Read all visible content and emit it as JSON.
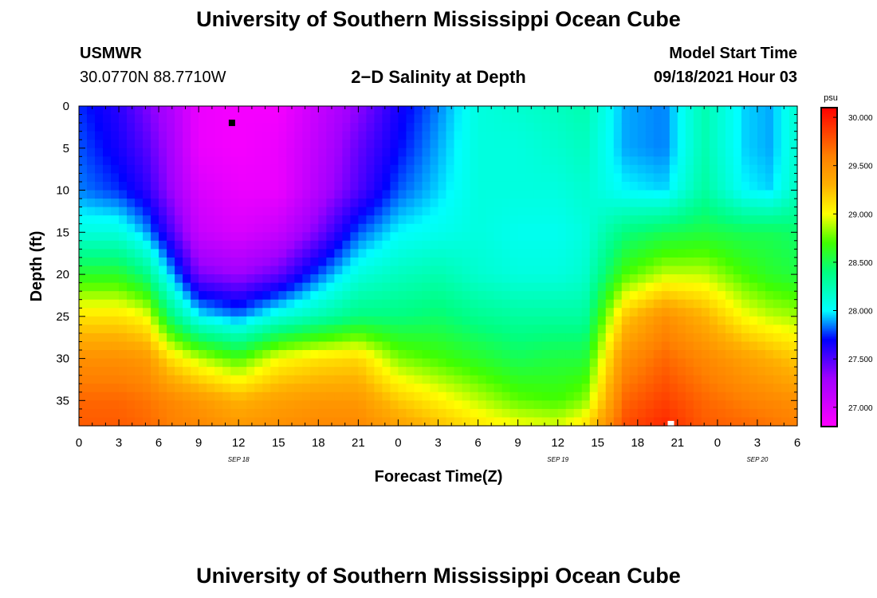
{
  "header": {
    "title": "University of Southern Mississippi Ocean Cube",
    "footer_title": "University of Southern Mississippi Ocean Cube",
    "station": "USMWR",
    "coords": "30.0770N  88.7710W",
    "plot_title": "2−D Salinity at Depth",
    "model_label": "Model Start Time",
    "model_time": "09/18/2021 Hour 03"
  },
  "chart_data": {
    "type": "heatmap",
    "title": "2−D Salinity at Depth",
    "xlabel": "Forecast Time(Z)",
    "ylabel": "Depth (ft)",
    "x_tick_labels": [
      "0",
      "3",
      "6",
      "9",
      "12",
      "15",
      "18",
      "21",
      "0",
      "3",
      "6",
      "9",
      "12",
      "15",
      "18",
      "21",
      "0",
      "3",
      "6"
    ],
    "date_labels": [
      {
        "text": "SEP 18",
        "hour_index": 12
      },
      {
        "text": "SEP 19",
        "hour_index": 36
      },
      {
        "text": "SEP 20",
        "hour_index": 51
      }
    ],
    "x_range_hours": [
      0,
      54
    ],
    "y_ticks": [
      0,
      5,
      10,
      15,
      20,
      25,
      30,
      35
    ],
    "y_range_ft": [
      0,
      38
    ],
    "y_inverted": true,
    "colorbar": {
      "unit": "psu",
      "ticks": [
        "30.000",
        "29.500",
        "29.000",
        "28.500",
        "28.000",
        "27.500",
        "27.000"
      ],
      "range": [
        26.8,
        30.1
      ],
      "stops": [
        {
          "v": 26.8,
          "color": "#ff00ff"
        },
        {
          "v": 27.3,
          "color": "#a000ff"
        },
        {
          "v": 27.7,
          "color": "#0000ff"
        },
        {
          "v": 28.0,
          "color": "#00ffff"
        },
        {
          "v": 28.4,
          "color": "#00ff80"
        },
        {
          "v": 28.7,
          "color": "#40ff00"
        },
        {
          "v": 29.0,
          "color": "#ffff00"
        },
        {
          "v": 29.3,
          "color": "#ffb000"
        },
        {
          "v": 29.6,
          "color": "#ff8000"
        },
        {
          "v": 30.1,
          "color": "#ff0000"
        }
      ]
    },
    "markers": [
      {
        "hour": 11.5,
        "depth_ft": 2,
        "color": "#000000"
      },
      {
        "hour": 44.5,
        "depth_ft": 37.8,
        "color": "#ffffff"
      }
    ],
    "field_profiles": {
      "note": "salinity (psu) by hour (key) at depths 0,5,10,15,20,25,30,35,38 ft",
      "depths_ft": [
        0,
        5,
        10,
        15,
        20,
        25,
        30,
        35,
        38
      ],
      "columns": [
        {
          "hour": 0,
          "values": [
            27.75,
            27.8,
            27.85,
            28.1,
            28.6,
            29.1,
            29.5,
            29.7,
            29.75
          ]
        },
        {
          "hour": 3,
          "values": [
            27.6,
            27.65,
            27.75,
            28.1,
            28.6,
            29.1,
            29.5,
            29.7,
            29.75
          ]
        },
        {
          "hour": 5,
          "values": [
            27.4,
            27.5,
            27.6,
            27.9,
            28.4,
            29.0,
            29.45,
            29.65,
            29.7
          ]
        },
        {
          "hour": 7,
          "values": [
            27.2,
            27.25,
            27.3,
            27.5,
            27.9,
            28.4,
            29.1,
            29.55,
            29.6
          ]
        },
        {
          "hour": 9,
          "values": [
            26.9,
            26.9,
            27.0,
            27.1,
            27.4,
            28.0,
            28.9,
            29.45,
            29.55
          ]
        },
        {
          "hour": 12,
          "values": [
            26.85,
            26.85,
            26.9,
            27.0,
            27.3,
            27.85,
            28.7,
            29.3,
            29.45
          ]
        },
        {
          "hour": 15,
          "values": [
            26.85,
            26.9,
            26.9,
            27.1,
            27.45,
            28.1,
            29.0,
            29.4,
            29.5
          ]
        },
        {
          "hour": 18,
          "values": [
            27.1,
            27.15,
            27.2,
            27.4,
            27.8,
            28.25,
            29.1,
            29.45,
            29.55
          ]
        },
        {
          "hour": 21,
          "values": [
            27.35,
            27.45,
            27.5,
            27.8,
            28.1,
            28.4,
            29.15,
            29.45,
            29.55
          ]
        },
        {
          "hour": 24,
          "values": [
            27.65,
            27.7,
            27.8,
            28.0,
            28.2,
            28.4,
            28.8,
            29.2,
            29.4
          ]
        },
        {
          "hour": 27,
          "values": [
            27.85,
            27.9,
            27.95,
            28.05,
            28.25,
            28.45,
            28.7,
            29.05,
            29.25
          ]
        },
        {
          "hour": 30,
          "values": [
            28.1,
            28.1,
            28.1,
            28.1,
            28.15,
            28.35,
            28.6,
            28.9,
            29.1
          ]
        },
        {
          "hour": 33,
          "values": [
            28.15,
            28.1,
            28.1,
            28.05,
            28.1,
            28.3,
            28.5,
            28.75,
            29.0
          ]
        },
        {
          "hour": 36,
          "values": [
            28.2,
            28.15,
            28.1,
            28.05,
            28.1,
            28.3,
            28.55,
            28.7,
            28.95
          ]
        },
        {
          "hour": 38,
          "values": [
            28.25,
            28.2,
            28.15,
            28.1,
            28.15,
            28.3,
            28.55,
            28.8,
            29.1
          ]
        },
        {
          "hour": 41,
          "values": [
            27.9,
            27.9,
            28.0,
            28.4,
            28.7,
            29.2,
            29.5,
            29.7,
            29.8
          ]
        },
        {
          "hour": 44,
          "values": [
            27.85,
            27.85,
            27.95,
            28.5,
            28.9,
            29.5,
            29.7,
            29.85,
            29.95
          ]
        },
        {
          "hour": 47,
          "values": [
            28.25,
            28.25,
            28.3,
            28.55,
            28.9,
            29.3,
            29.55,
            29.7,
            29.75
          ]
        },
        {
          "hour": 50,
          "values": [
            27.95,
            27.95,
            28.0,
            28.5,
            28.7,
            29.0,
            29.4,
            29.6,
            29.7
          ]
        },
        {
          "hour": 52,
          "values": [
            27.9,
            27.9,
            27.95,
            28.5,
            28.6,
            28.9,
            29.3,
            29.55,
            29.65
          ]
        },
        {
          "hour": 54,
          "values": [
            28.15,
            28.15,
            28.2,
            28.45,
            28.55,
            28.85,
            29.2,
            29.5,
            29.6
          ]
        }
      ]
    }
  }
}
